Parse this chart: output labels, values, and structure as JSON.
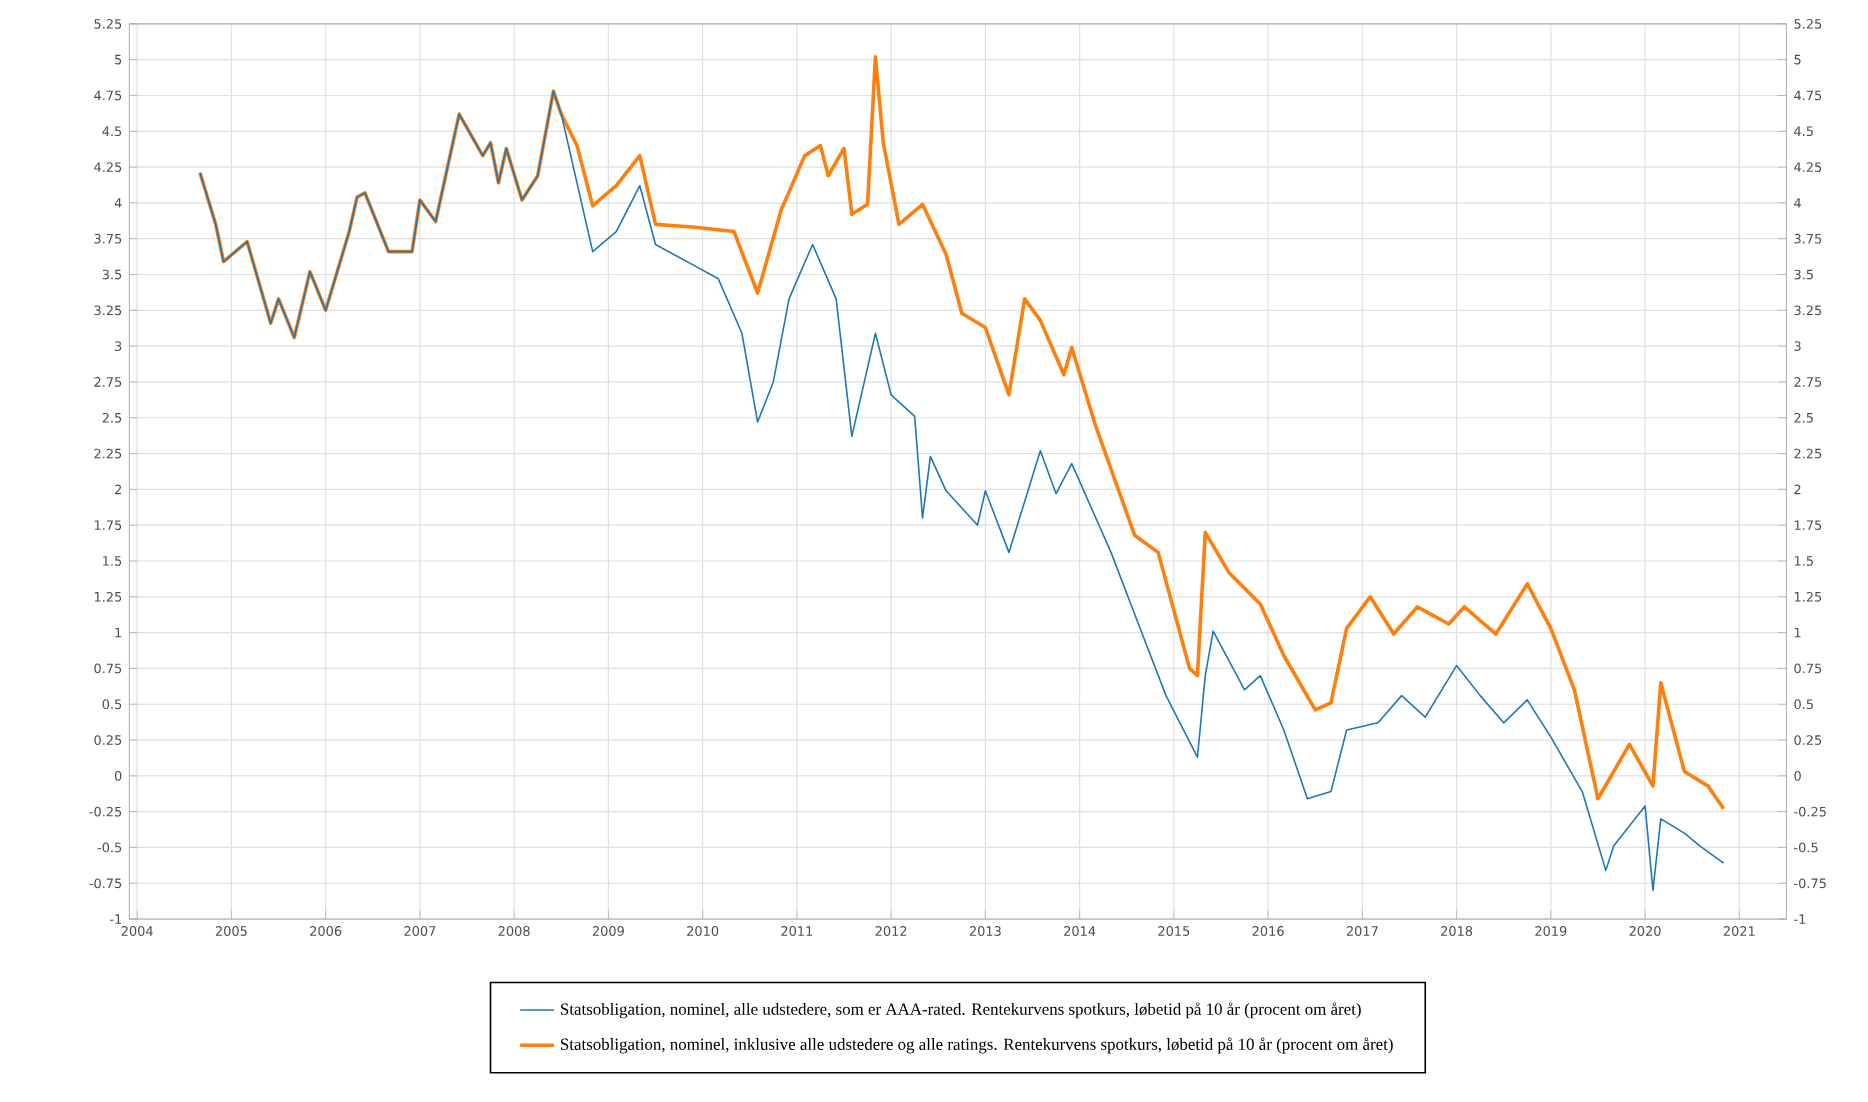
{
  "chart_data": {
    "type": "line",
    "xlim": [
      "2003-12",
      "2021-07"
    ],
    "ylim": [
      -1,
      5.25
    ],
    "y2lim": [
      -1,
      5.25
    ],
    "xticks": [
      "2004",
      "2005",
      "2006",
      "2007",
      "2008",
      "2009",
      "2010",
      "2011",
      "2012",
      "2013",
      "2014",
      "2015",
      "2016",
      "2017",
      "2018",
      "2019",
      "2020",
      "2021"
    ],
    "yticks": [
      -1,
      -0.75,
      -0.5,
      -0.25,
      0,
      0.25,
      0.5,
      0.75,
      1,
      1.25,
      1.5,
      1.75,
      2,
      2.25,
      2.5,
      2.75,
      3,
      3.25,
      3.5,
      3.75,
      4,
      4.25,
      4.5,
      4.75,
      5,
      5.25
    ],
    "y2ticks": [
      -1,
      -0.75,
      -0.5,
      -0.25,
      0,
      0.25,
      0.5,
      0.75,
      1,
      1.25,
      1.5,
      1.75,
      2,
      2.25,
      2.5,
      2.75,
      3,
      3.25,
      3.5,
      3.75,
      4,
      4.25,
      4.5,
      4.75,
      5,
      5.25
    ],
    "grid": true,
    "legend": "bottom",
    "series": [
      {
        "name": "Statsobligation, nominel, alle udstedere, som er AAA-rated. Rentekurvens spotkurs, løbetid på 10 år (procent om året)",
        "color": "#1f77b4",
        "x": [
          "2004-09",
          "2004-11",
          "2004-12",
          "2005-03",
          "2005-06",
          "2005-07",
          "2005-09",
          "2005-11",
          "2006-01",
          "2006-04",
          "2006-05",
          "2006-06",
          "2006-09",
          "2006-12",
          "2007-01",
          "2007-03",
          "2007-06",
          "2007-09",
          "2007-10",
          "2007-11",
          "2007-12",
          "2008-02",
          "2008-04",
          "2008-06",
          "2008-07",
          "2008-09",
          "2008-11",
          "2009-02",
          "2009-05",
          "2009-07",
          "2009-12",
          "2010-03",
          "2010-06",
          "2010-08",
          "2010-10",
          "2010-12",
          "2011-03",
          "2011-06",
          "2011-08",
          "2011-10",
          "2011-11",
          "2012-01",
          "2012-04",
          "2012-05",
          "2012-06",
          "2012-08",
          "2012-12",
          "2013-01",
          "2013-04",
          "2013-08",
          "2013-10",
          "2013-12",
          "2014-05",
          "2014-08",
          "2014-12",
          "2015-04",
          "2015-05",
          "2015-06",
          "2015-10",
          "2015-12",
          "2016-03",
          "2016-06",
          "2016-09",
          "2016-11",
          "2017-03",
          "2017-06",
          "2017-09",
          "2018-01",
          "2018-04",
          "2018-07",
          "2018-10",
          "2019-01",
          "2019-05",
          "2019-08",
          "2019-09",
          "2020-01",
          "2020-02",
          "2020-03",
          "2020-06",
          "2020-08",
          "2020-11"
        ],
        "values": [
          4.21,
          3.85,
          3.59,
          3.73,
          3.16,
          3.33,
          3.06,
          3.52,
          3.25,
          3.8,
          4.04,
          4.07,
          3.66,
          3.66,
          4.02,
          3.87,
          4.62,
          4.33,
          4.42,
          4.14,
          4.38,
          4.02,
          4.19,
          4.78,
          4.62,
          4.14,
          3.66,
          3.8,
          4.12,
          3.71,
          3.56,
          3.47,
          3.09,
          2.47,
          2.75,
          3.33,
          3.71,
          3.33,
          2.37,
          2.85,
          3.09,
          2.66,
          2.51,
          1.8,
          2.23,
          1.99,
          1.75,
          1.99,
          1.56,
          2.27,
          1.97,
          2.18,
          1.56,
          1.13,
          0.56,
          0.13,
          0.7,
          1.01,
          0.6,
          0.7,
          0.32,
          -0.16,
          -0.11,
          0.32,
          0.37,
          0.56,
          0.41,
          0.77,
          0.56,
          0.37,
          0.53,
          0.27,
          -0.11,
          -0.66,
          -0.49,
          -0.21,
          -0.8,
          -0.3,
          -0.4,
          -0.49,
          -0.61
        ]
      },
      {
        "name": "Statsobligation, nominel, inklusive alle udstedere og alle ratings. Rentekurvens spotkurs, løbetid på 10 år (procent om året)",
        "color": "#ff7f0e",
        "x": [
          "2004-09",
          "2004-11",
          "2004-12",
          "2005-03",
          "2005-06",
          "2005-07",
          "2005-09",
          "2005-11",
          "2006-01",
          "2006-04",
          "2006-05",
          "2006-06",
          "2006-09",
          "2006-12",
          "2007-01",
          "2007-03",
          "2007-06",
          "2007-09",
          "2007-10",
          "2007-11",
          "2007-12",
          "2008-02",
          "2008-04",
          "2008-06",
          "2008-07",
          "2008-09",
          "2008-11",
          "2009-02",
          "2009-05",
          "2009-07",
          "2009-12",
          "2010-05",
          "2010-08",
          "2010-11",
          "2011-02",
          "2011-04",
          "2011-05",
          "2011-07",
          "2011-08",
          "2011-10",
          "2011-11",
          "2011-12",
          "2012-02",
          "2012-05",
          "2012-08",
          "2012-10",
          "2013-01",
          "2013-04",
          "2013-06",
          "2013-08",
          "2013-11",
          "2013-12",
          "2014-03",
          "2014-08",
          "2014-11",
          "2015-03",
          "2015-04",
          "2015-05",
          "2015-08",
          "2015-12",
          "2016-03",
          "2016-07",
          "2016-09",
          "2016-11",
          "2017-02",
          "2017-05",
          "2017-08",
          "2017-12",
          "2018-02",
          "2018-06",
          "2018-10",
          "2019-01",
          "2019-04",
          "2019-07",
          "2019-11",
          "2020-02",
          "2020-03",
          "2020-06",
          "2020-09",
          "2020-11"
        ],
        "values": [
          4.21,
          3.85,
          3.59,
          3.73,
          3.16,
          3.33,
          3.06,
          3.52,
          3.25,
          3.8,
          4.04,
          4.07,
          3.66,
          3.66,
          4.02,
          3.87,
          4.62,
          4.33,
          4.42,
          4.14,
          4.38,
          4.02,
          4.19,
          4.78,
          4.62,
          4.4,
          3.98,
          4.12,
          4.33,
          3.85,
          3.83,
          3.8,
          3.37,
          3.95,
          4.33,
          4.4,
          4.19,
          4.38,
          3.92,
          3.99,
          5.02,
          4.42,
          3.85,
          3.99,
          3.64,
          3.23,
          3.13,
          2.66,
          3.33,
          3.18,
          2.8,
          2.99,
          2.45,
          1.68,
          1.56,
          0.75,
          0.7,
          1.7,
          1.42,
          1.2,
          0.84,
          0.46,
          0.51,
          1.03,
          1.25,
          0.99,
          1.18,
          1.06,
          1.18,
          0.99,
          1.34,
          1.03,
          0.6,
          -0.16,
          0.22,
          -0.07,
          0.65,
          0.03,
          -0.07,
          -0.23
        ]
      }
    ]
  }
}
